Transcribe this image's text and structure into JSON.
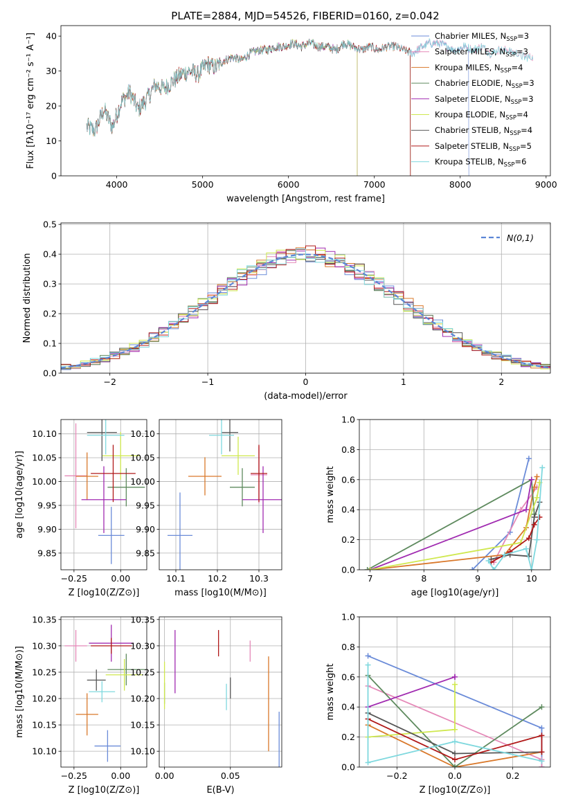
{
  "figure": {
    "title": "PLATE=2884, MJD=54526, FIBERID=0160, z=0.042"
  },
  "colors": {
    "chabrier_miles": "#6a8bd8",
    "salpeter_miles": "#e589b8",
    "kroupa_miles": "#d9782a",
    "chabrier_elodie": "#5e8a5e",
    "salpeter_elodie": "#a02ab0",
    "kroupa_elodie": "#cfe84e",
    "chabrier_stelib": "#555555",
    "salpeter_stelib": "#b01818",
    "kroupa_stelib": "#7fd8de",
    "gaussian": "#5b86d6",
    "grid": "#b0b0b0"
  },
  "chart_data": [
    {
      "id": "spectrum",
      "type": "line",
      "title": "PLATE=2884, MJD=54526, FIBERID=0160, z=0.042",
      "xlabel": "wavelength [Angstrom, rest frame]",
      "ylabel": "Flux [fλ10⁻¹⁷ erg cm⁻² s⁻¹ A⁻¹]",
      "xlim": [
        3350,
        9050
      ],
      "ylim": [
        0,
        43
      ],
      "xticks": [
        4000,
        5000,
        6000,
        7000,
        8000,
        9000
      ],
      "yticks": [
        0,
        10,
        20,
        30,
        40
      ],
      "grid": false,
      "legend": "upper-right",
      "x": [
        3650,
        3750,
        3850,
        3950,
        4050,
        4150,
        4250,
        4350,
        4450,
        4550,
        4650,
        4750,
        4850,
        4950,
        5050,
        5150,
        5250,
        5350,
        5450,
        5550,
        5650,
        5750,
        5850,
        5950,
        6050,
        6150,
        6250,
        6350,
        6450,
        6550,
        6650,
        6750,
        6850,
        6950,
        7050,
        7150,
        7250,
        7350,
        7450,
        7550,
        7650,
        7750,
        7850,
        7950,
        8050,
        8150,
        8250,
        8350,
        8450,
        8550,
        8650,
        8750,
        8850
      ],
      "y": [
        14,
        13,
        19,
        14,
        21,
        24,
        19,
        22,
        26,
        25,
        27,
        29,
        30,
        29,
        32,
        31,
        33,
        34,
        33,
        35,
        36,
        36,
        37,
        37,
        38,
        37,
        38,
        37,
        37,
        36,
        38,
        37,
        36,
        37,
        36,
        37,
        37,
        36,
        35,
        37,
        38,
        38,
        37,
        36,
        37,
        36,
        37,
        35,
        36,
        36,
        35,
        34,
        34
      ],
      "series": [
        {
          "name": "Chabrier MILES, N",
          "sub": "SSP",
          "suffix": "=3",
          "color": "#6a8bd8",
          "clip_end": 8100
        },
        {
          "name": "Salpeter MILES, N",
          "sub": "SSP",
          "suffix": "=3",
          "color": "#e589b8",
          "clip_end": 8850
        },
        {
          "name": "Kroupa MILES, N",
          "sub": "SSP",
          "suffix": "=4",
          "color": "#d9782a",
          "clip_end": 7420
        },
        {
          "name": "Chabrier ELODIE, N",
          "sub": "SSP",
          "suffix": "=3",
          "color": "#5e8a5e",
          "clip_end": 6800
        },
        {
          "name": "Salpeter ELODIE, N",
          "sub": "SSP",
          "suffix": "=3",
          "color": "#a02ab0",
          "clip_end": 6800
        },
        {
          "name": "Kroupa ELODIE, N",
          "sub": "SSP",
          "suffix": "=4",
          "color": "#cfe84e",
          "clip_end": 6800
        },
        {
          "name": "Chabrier STELIB, N",
          "sub": "SSP",
          "suffix": "=4",
          "color": "#555555",
          "clip_end": 7420
        },
        {
          "name": "Salpeter STELIB, N",
          "sub": "SSP",
          "suffix": "=5",
          "color": "#b01818",
          "clip_end": 7420
        },
        {
          "name": "Kroupa STELIB, N",
          "sub": "SSP",
          "suffix": "=6",
          "color": "#7fd8de",
          "clip_end": 8850
        }
      ]
    },
    {
      "id": "residuals",
      "type": "histogram",
      "xlabel": "(data-model)/error",
      "ylabel": "Normed distribution",
      "xlim": [
        -2.5,
        2.5
      ],
      "ylim": [
        0,
        0.505
      ],
      "xticks": [
        -2,
        -1,
        0,
        1,
        2
      ],
      "yticks": [
        0.0,
        0.1,
        0.2,
        0.3,
        0.4,
        0.5
      ],
      "grid": true,
      "legend": "upper-right",
      "reference": {
        "name": "N(0,1)",
        "mu": 0,
        "sigma": 1
      },
      "bin_width": 0.1
    },
    {
      "id": "age_vs_Z",
      "type": "errorbar",
      "xlabel": "Z [log10(Z/Z⊙)]",
      "ylabel": "age [log10(age/yr)]",
      "xlim": [
        -0.32,
        0.14
      ],
      "ylim": [
        9.815,
        10.13
      ],
      "xticks": [
        -0.25,
        0.0
      ],
      "yticks": [
        9.85,
        9.9,
        9.95,
        10.0,
        10.05,
        10.1
      ],
      "grid": true,
      "points": [
        {
          "color": "#6a8bd8",
          "x": -0.05,
          "xerr": 0.07,
          "y": 9.887,
          "yerr": 0.06
        },
        {
          "color": "#e589b8",
          "x": -0.24,
          "xerr": 0.06,
          "y": 10.012,
          "yerr": 0.11
        },
        {
          "color": "#d9782a",
          "x": -0.18,
          "xerr": 0.06,
          "y": 10.011,
          "yerr": 0.05
        },
        {
          "color": "#5e8a5e",
          "x": 0.03,
          "xerr": 0.1,
          "y": 9.988,
          "yerr": 0.04
        },
        {
          "color": "#a02ab0",
          "x": -0.09,
          "xerr": 0.12,
          "y": 9.962,
          "yerr": 0.07
        },
        {
          "color": "#cfe84e",
          "x": 0.0,
          "xerr": 0.1,
          "y": 10.054,
          "yerr": 0.05
        },
        {
          "color": "#555555",
          "x": -0.1,
          "xerr": 0.08,
          "y": 10.103,
          "yerr": 0.06
        },
        {
          "color": "#b01818",
          "x": -0.04,
          "xerr": 0.12,
          "y": 10.017,
          "yerr": 0.06
        },
        {
          "color": "#7fd8de",
          "x": -0.08,
          "xerr": 0.1,
          "y": 10.097,
          "yerr": 0.04
        }
      ]
    },
    {
      "id": "age_vs_mass",
      "type": "errorbar",
      "xlabel": "mass [log10(M/M⊙)]",
      "ylabel": "",
      "xlim": [
        10.06,
        10.355
      ],
      "ylim": [
        9.815,
        10.13
      ],
      "xticks": [
        10.1,
        10.2,
        10.3
      ],
      "yticks": [
        9.85,
        9.9,
        9.95,
        10.0,
        10.05,
        10.1
      ],
      "grid": true,
      "points": [
        {
          "color": "#6a8bd8",
          "x": 10.11,
          "xerr": 0.03,
          "y": 9.887,
          "yerr": 0.09
        },
        {
          "color": "#e589b8",
          "x": 10.3,
          "xerr": 0.02,
          "y": 10.014,
          "yerr": 0.06
        },
        {
          "color": "#d9782a",
          "x": 10.17,
          "xerr": 0.04,
          "y": 10.011,
          "yerr": 0.04
        },
        {
          "color": "#5e8a5e",
          "x": 10.26,
          "xerr": 0.03,
          "y": 9.988,
          "yerr": 0.04
        },
        {
          "color": "#a02ab0",
          "x": 10.31,
          "xerr": 0.05,
          "y": 9.962,
          "yerr": 0.07
        },
        {
          "color": "#cfe84e",
          "x": 10.25,
          "xerr": 0.04,
          "y": 10.054,
          "yerr": 0.04
        },
        {
          "color": "#555555",
          "x": 10.23,
          "xerr": 0.02,
          "y": 10.103,
          "yerr": 0.04
        },
        {
          "color": "#b01818",
          "x": 10.3,
          "xerr": 0.02,
          "y": 10.017,
          "yerr": 0.06
        },
        {
          "color": "#7fd8de",
          "x": 10.21,
          "xerr": 0.03,
          "y": 10.097,
          "yerr": 0.04
        }
      ]
    },
    {
      "id": "weight_vs_age",
      "type": "line",
      "xlabel": "age [log10(age/yr)]",
      "ylabel": "mass weight",
      "xlim": [
        6.8,
        10.35
      ],
      "ylim": [
        0,
        1.0
      ],
      "xticks": [
        7,
        8,
        9,
        10
      ],
      "yticks": [
        0.0,
        0.2,
        0.4,
        0.6,
        0.8,
        1.0
      ],
      "grid": true,
      "series": [
        {
          "color": "#6a8bd8",
          "x": [
            8.9,
            9.6,
            9.95
          ],
          "y": [
            0.0,
            0.25,
            0.74
          ]
        },
        {
          "color": "#e589b8",
          "x": [
            9.3,
            9.8,
            10.1
          ],
          "y": [
            0.05,
            0.4,
            0.55
          ]
        },
        {
          "color": "#d9782a",
          "x": [
            7.0,
            9.5,
            9.9,
            10.05,
            10.1
          ],
          "y": [
            0.0,
            0.1,
            0.28,
            0.55,
            0.62
          ]
        },
        {
          "color": "#5e8a5e",
          "x": [
            6.95,
            10.0,
            10.05
          ],
          "y": [
            0.0,
            0.6,
            0.37
          ]
        },
        {
          "color": "#a02ab0",
          "x": [
            7.0,
            9.9,
            10.0
          ],
          "y": [
            0.0,
            0.4,
            0.6
          ]
        },
        {
          "color": "#cfe84e",
          "x": [
            7.0,
            9.8,
            10.1,
            10.15
          ],
          "y": [
            0.0,
            0.18,
            0.48,
            0.58
          ]
        },
        {
          "color": "#555555",
          "x": [
            9.25,
            9.6,
            9.95,
            10.05,
            10.15
          ],
          "y": [
            0.07,
            0.1,
            0.09,
            0.35,
            0.45
          ]
        },
        {
          "color": "#b01818",
          "x": [
            9.25,
            9.6,
            9.95,
            10.05,
            10.15
          ],
          "y": [
            0.05,
            0.12,
            0.21,
            0.3,
            0.35
          ]
        },
        {
          "color": "#7fd8de",
          "x": [
            9.2,
            9.3,
            9.5,
            9.9,
            10.0,
            10.1,
            10.2
          ],
          "y": [
            0.06,
            0.0,
            0.1,
            0.14,
            0.0,
            0.2,
            0.68
          ]
        }
      ]
    },
    {
      "id": "mass_vs_Z",
      "type": "errorbar",
      "xlabel": "Z [log10(Z/Z⊙)]",
      "ylabel": "mass [log10(M/M⊙)]",
      "xlim": [
        -0.32,
        0.14
      ],
      "ylim": [
        10.07,
        10.355
      ],
      "xticks": [
        -0.25,
        0.0
      ],
      "yticks": [
        10.1,
        10.15,
        10.2,
        10.25,
        10.3,
        10.35
      ],
      "grid": true,
      "points": [
        {
          "color": "#6a8bd8",
          "x": -0.07,
          "xerr": 0.07,
          "y": 10.11,
          "yerr": 0.03
        },
        {
          "color": "#e589b8",
          "x": -0.24,
          "xerr": 0.06,
          "y": 10.3,
          "yerr": 0.03
        },
        {
          "color": "#d9782a",
          "x": -0.18,
          "xerr": 0.06,
          "y": 10.17,
          "yerr": 0.04
        },
        {
          "color": "#5e8a5e",
          "x": 0.03,
          "xerr": 0.1,
          "y": 10.255,
          "yerr": 0.03
        },
        {
          "color": "#a02ab0",
          "x": -0.05,
          "xerr": 0.12,
          "y": 10.305,
          "yerr": 0.035
        },
        {
          "color": "#cfe84e",
          "x": 0.02,
          "xerr": 0.1,
          "y": 10.245,
          "yerr": 0.03
        },
        {
          "color": "#555555",
          "x": -0.13,
          "xerr": 0.05,
          "y": 10.235,
          "yerr": 0.02
        },
        {
          "color": "#b01818",
          "x": -0.05,
          "xerr": 0.11,
          "y": 10.3,
          "yerr": 0.015
        },
        {
          "color": "#7fd8de",
          "x": -0.1,
          "xerr": 0.07,
          "y": 10.213,
          "yerr": 0.02
        }
      ]
    },
    {
      "id": "mass_vs_ebv",
      "type": "errorbar",
      "xlabel": "E(B-V)",
      "ylabel": "",
      "xlim": [
        -0.004,
        0.089
      ],
      "ylim": [
        10.07,
        10.355
      ],
      "xticks": [
        0.0,
        0.05
      ],
      "yticks": [
        10.1,
        10.15,
        10.2,
        10.25,
        10.3,
        10.35
      ],
      "grid": true,
      "points": [
        {
          "color": "#6a8bd8",
          "x": 0.087,
          "xerr": 0,
          "y": 10.12,
          "yerr": 0.055
        },
        {
          "color": "#e589b8",
          "x": 0.065,
          "xerr": 0,
          "y": 10.29,
          "yerr": 0.02
        },
        {
          "color": "#d9782a",
          "x": 0.079,
          "xerr": 0,
          "y": 10.19,
          "yerr": 0.09
        },
        {
          "color": "#5e8a5e",
          "x": 0.0,
          "xerr": 0,
          "y": 10.21,
          "yerr": 0.02
        },
        {
          "color": "#a02ab0",
          "x": 0.008,
          "xerr": 0,
          "y": 10.27,
          "yerr": 0.06
        },
        {
          "color": "#cfe84e",
          "x": 0.0,
          "xerr": 0,
          "y": 10.225,
          "yerr": 0.045
        },
        {
          "color": "#555555",
          "x": 0.05,
          "xerr": 0,
          "y": 10.22,
          "yerr": 0.02
        },
        {
          "color": "#b01818",
          "x": 0.041,
          "xerr": 0,
          "y": 10.305,
          "yerr": 0.025
        },
        {
          "color": "#7fd8de",
          "x": 0.047,
          "xerr": 0,
          "y": 10.203,
          "yerr": 0.025
        }
      ]
    },
    {
      "id": "weight_vs_Z",
      "type": "line",
      "xlabel": "Z [log10(Z/Z⊙)]",
      "ylabel": "mass weight",
      "xlim": [
        -0.33,
        0.33
      ],
      "ylim": [
        0,
        1.0
      ],
      "xticks": [
        -0.2,
        0.0,
        0.2
      ],
      "yticks": [
        0.0,
        0.2,
        0.4,
        0.6,
        0.8,
        1.0
      ],
      "grid": true,
      "series": [
        {
          "color": "#6a8bd8",
          "x": [
            -0.3,
            0.3,
            0.3
          ],
          "y": [
            0.74,
            0.26,
            0.0
          ]
        },
        {
          "color": "#e589b8",
          "x": [
            -0.3,
            0.3,
            0.3
          ],
          "y": [
            0.54,
            0.05,
            0.0
          ]
        },
        {
          "color": "#d9782a",
          "x": [
            -0.3,
            0.0,
            0.3
          ],
          "y": [
            0.28,
            0.0,
            0.1
          ]
        },
        {
          "color": "#5e8a5e",
          "x": [
            -0.3,
            0.0,
            0.3
          ],
          "y": [
            0.61,
            0.0,
            0.4
          ]
        },
        {
          "color": "#a02ab0",
          "x": [
            -0.3,
            0.0,
            0.0
          ],
          "y": [
            0.4,
            0.6,
            0.6
          ]
        },
        {
          "color": "#cfe84e",
          "x": [
            -0.3,
            0.0,
            0.0
          ],
          "y": [
            0.2,
            0.25,
            0.55
          ]
        },
        {
          "color": "#555555",
          "x": [
            -0.3,
            0.0,
            0.3
          ],
          "y": [
            0.36,
            0.09,
            0.1
          ]
        },
        {
          "color": "#b01818",
          "x": [
            -0.3,
            0.0,
            0.3,
            0.3
          ],
          "y": [
            0.32,
            0.05,
            0.21,
            0.1
          ]
        },
        {
          "color": "#7fd8de",
          "x": [
            -0.3,
            -0.3,
            0.0,
            0.3
          ],
          "y": [
            0.68,
            0.03,
            0.17,
            0.04
          ]
        }
      ]
    }
  ]
}
